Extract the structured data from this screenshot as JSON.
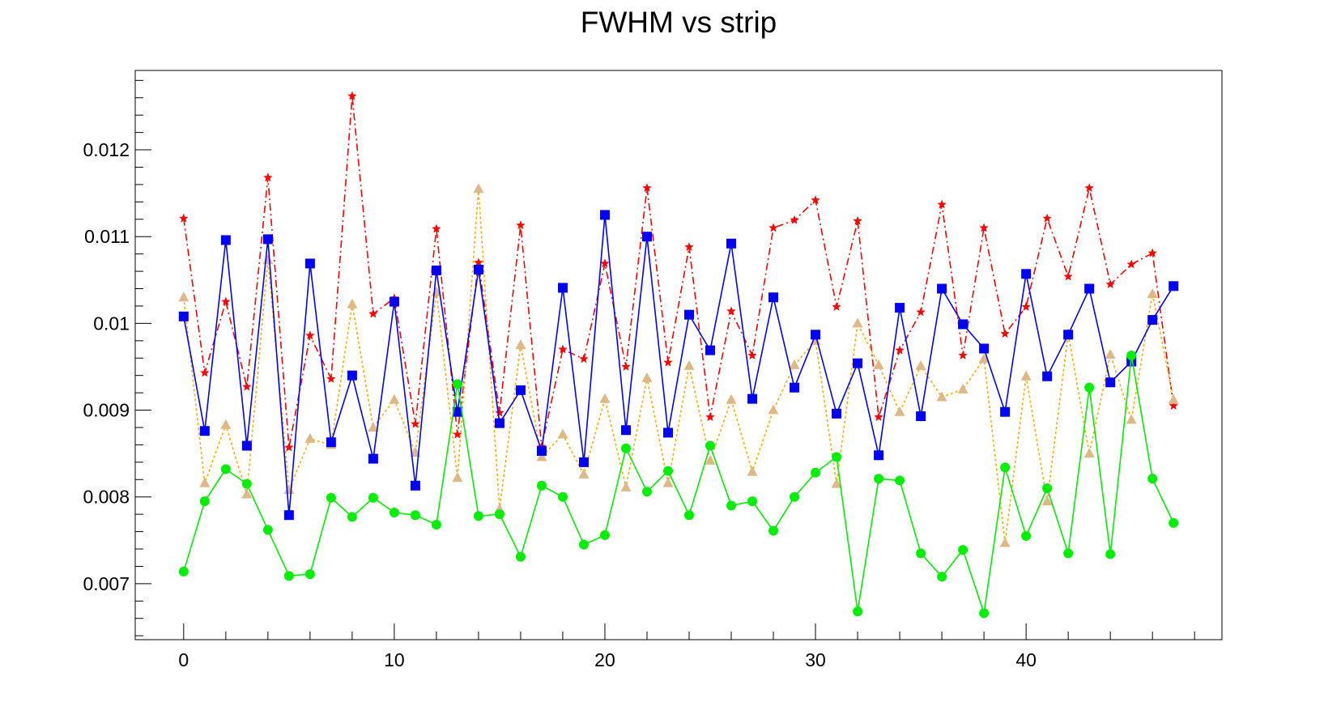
{
  "chart_data": {
    "type": "line",
    "title": "FWHM vs strip",
    "xlabel": "",
    "ylabel": "",
    "xlim": [
      -2.3,
      49.3
    ],
    "ylim": [
      0.006355,
      0.012915
    ],
    "x_ticks": [
      0,
      10,
      20,
      30,
      40
    ],
    "y_ticks": [
      0.007,
      0.008,
      0.009,
      0.01,
      0.011,
      0.012
    ],
    "x_tick_labels": [
      "0",
      "10",
      "20",
      "30",
      "40"
    ],
    "y_tick_labels": [
      "0.007",
      "0.008",
      "0.009",
      "0.01",
      "0.011",
      "0.012"
    ],
    "grid": false,
    "legend": "none",
    "x": [
      0,
      1,
      2,
      3,
      4,
      5,
      6,
      7,
      8,
      9,
      10,
      11,
      12,
      13,
      14,
      15,
      16,
      17,
      18,
      19,
      20,
      21,
      22,
      23,
      24,
      25,
      26,
      27,
      28,
      29,
      30,
      31,
      32,
      33,
      34,
      35,
      36,
      37,
      38,
      39,
      40,
      41,
      42,
      43,
      44,
      45,
      46,
      47
    ],
    "series": [
      {
        "color": "#ff0000",
        "marker": "star",
        "line_style": "dash-dot",
        "values": [
          0.01121,
          0.00943,
          0.01025,
          0.00927,
          0.01168,
          0.00857,
          0.00986,
          0.00936,
          0.01262,
          0.01011,
          0.01029,
          0.00884,
          0.01109,
          0.00872,
          0.0107,
          0.00897,
          0.01113,
          0.00858,
          0.0097,
          0.00959,
          0.01069,
          0.0095,
          0.01156,
          0.00955,
          0.01088,
          0.00892,
          0.01014,
          0.00963,
          0.0111,
          0.01119,
          0.01142,
          0.01019,
          0.01118,
          0.00892,
          0.00969,
          0.01013,
          0.01137,
          0.00963,
          0.0111,
          0.00988,
          0.01019,
          0.01121,
          0.01054,
          0.01156,
          0.01045,
          0.01068,
          0.01081,
          0.00905
        ]
      },
      {
        "color": "#ffaa00",
        "marker": "triangle",
        "marker_color": "#deb887",
        "line_style": "dotted",
        "values": [
          0.0103,
          0.00816,
          0.00883,
          0.00803,
          0.01073,
          0.00808,
          0.00867,
          0.0086,
          0.01022,
          0.0088,
          0.00912,
          0.00851,
          0.01036,
          0.00822,
          0.01155,
          0.00786,
          0.00975,
          0.00846,
          0.00872,
          0.00826,
          0.00913,
          0.00811,
          0.00937,
          0.00816,
          0.00951,
          0.00842,
          0.00912,
          0.00829,
          0.009,
          0.00952,
          0.0098,
          0.00815,
          0.01,
          0.00952,
          0.00898,
          0.00951,
          0.00915,
          0.00924,
          0.00959,
          0.00747,
          0.00939,
          0.00795,
          0.00988,
          0.0085,
          0.00964,
          0.00889,
          0.01034,
          0.00912
        ]
      },
      {
        "color": "#0000ff",
        "marker": "square",
        "line_style": "solid",
        "values": [
          0.01008,
          0.00876,
          0.01096,
          0.00859,
          0.01097,
          0.00779,
          0.01069,
          0.00863,
          0.0094,
          0.00844,
          0.01025,
          0.00813,
          0.01061,
          0.00898,
          0.01062,
          0.00885,
          0.00923,
          0.00853,
          0.01041,
          0.0084,
          0.01125,
          0.00877,
          0.011,
          0.00874,
          0.0101,
          0.00969,
          0.01092,
          0.00913,
          0.0103,
          0.00926,
          0.00987,
          0.00896,
          0.00954,
          0.00848,
          0.01018,
          0.00893,
          0.0104,
          0.00999,
          0.00971,
          0.00898,
          0.01057,
          0.00939,
          0.00987,
          0.0104,
          0.00932,
          0.00956,
          0.01004,
          0.01043
        ]
      },
      {
        "color": "#00ee00",
        "marker": "circle",
        "line_style": "solid",
        "values": [
          0.00714,
          0.00795,
          0.00832,
          0.00815,
          0.00762,
          0.00709,
          0.00711,
          0.00799,
          0.00777,
          0.00799,
          0.00782,
          0.00779,
          0.00768,
          0.0093,
          0.00778,
          0.0078,
          0.00731,
          0.00813,
          0.008,
          0.00745,
          0.00756,
          0.00856,
          0.00806,
          0.0083,
          0.00779,
          0.00859,
          0.0079,
          0.00795,
          0.00761,
          0.008,
          0.00828,
          0.00846,
          0.00668,
          0.00821,
          0.00819,
          0.00735,
          0.00708,
          0.00739,
          0.00666,
          0.00834,
          0.00755,
          0.0081,
          0.00735,
          0.00926,
          0.00734,
          0.00963,
          0.00821,
          0.0077
        ]
      }
    ]
  }
}
